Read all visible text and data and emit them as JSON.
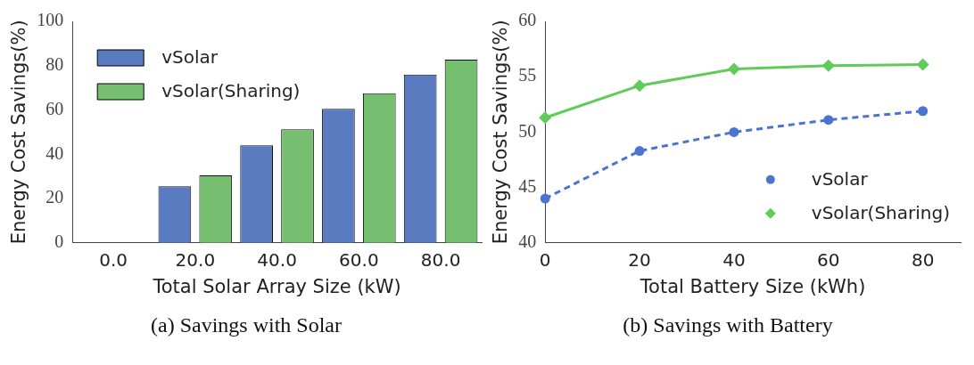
{
  "chart_data": [
    {
      "type": "bar",
      "title": "(a) Savings with Solar",
      "xlabel": "Total Solar Array Size (kW)",
      "ylabel": "Energy Cost Savings(%)",
      "categories": [
        "0.0",
        "20.0",
        "40.0",
        "60.0",
        "80.0"
      ],
      "series": [
        {
          "name": "vSolar",
          "color": "#5a7bc0",
          "values": [
            0,
            25.5,
            44,
            60.5,
            76
          ]
        },
        {
          "name": "vSolar(Sharing)",
          "color": "#77bf70",
          "values": [
            0,
            30.5,
            51.3,
            67.5,
            82.7
          ]
        }
      ],
      "ylim": [
        0,
        100
      ],
      "yticks": [
        0,
        20,
        40,
        60,
        80,
        100
      ],
      "grid": false,
      "legend": "top left"
    },
    {
      "type": "line",
      "title": "(b) Savings with Battery",
      "xlabel": "Total Battery Size (kWh)",
      "ylabel": "Energy Cost Savings(%)",
      "x": [
        0,
        20,
        40,
        60,
        80
      ],
      "series": [
        {
          "name": "vSolar",
          "color": "#4a74d0",
          "values": [
            44,
            48.3,
            50,
            51.1,
            51.9
          ],
          "marker": "circle",
          "line_style": "dashed"
        },
        {
          "name": "vSolar(Sharing)",
          "color": "#5fcb5a",
          "values": [
            51.3,
            54.2,
            55.7,
            56,
            56.1
          ],
          "marker": "diamond",
          "line_style": "solid"
        }
      ],
      "xlim": [
        0,
        88
      ],
      "xticks": [
        0,
        20,
        40,
        60,
        80
      ],
      "ylim": [
        40,
        60
      ],
      "yticks": [
        40,
        45,
        50,
        55,
        60
      ],
      "grid": false,
      "legend": "bottom right"
    }
  ]
}
